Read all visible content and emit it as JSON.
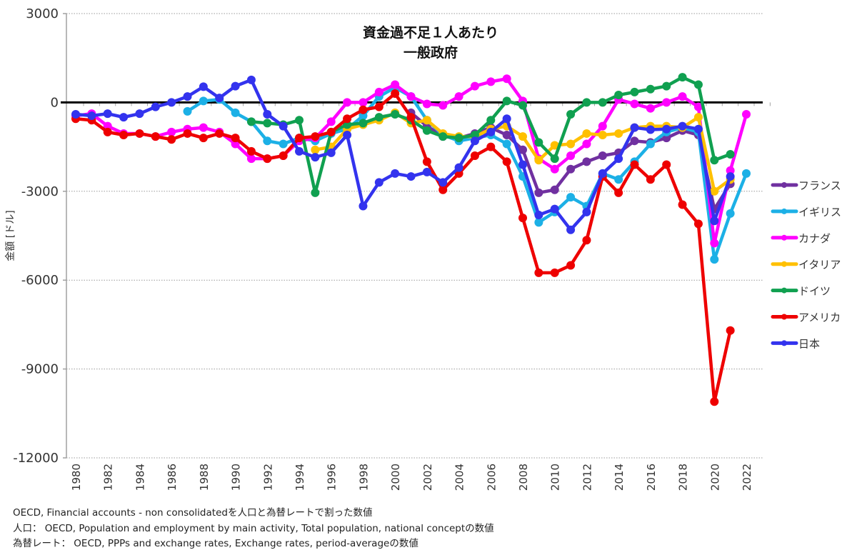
{
  "chart_data": {
    "type": "line",
    "title": "資金過不足１人あたり",
    "subtitle": "一般政府",
    "xlabel": "",
    "ylabel": "金額 [ドル]",
    "ylim": [
      -12000,
      3000
    ],
    "yticks": [
      3000,
      0,
      -3000,
      -6000,
      -9000,
      -12000
    ],
    "ytick_labels": [
      "3000",
      "0",
      "-3000",
      "-6000",
      "-9000",
      "-12000"
    ],
    "xlim": [
      1980,
      2022
    ],
    "xticks": [
      1980,
      1982,
      1984,
      1986,
      1988,
      1990,
      1992,
      1994,
      1996,
      1998,
      2000,
      2002,
      2004,
      2006,
      2008,
      2010,
      2012,
      2014,
      2016,
      2018,
      2020,
      2022
    ],
    "xtick_labels": [
      "1980",
      "1982",
      "1984",
      "1986",
      "1988",
      "1990",
      "1992",
      "1994",
      "1996",
      "1998",
      "2000",
      "2002",
      "2004",
      "2006",
      "2008",
      "2010",
      "2012",
      "2014",
      "2016",
      "2018",
      "2020",
      "2022"
    ],
    "grid": "horizontal-dotted",
    "zero_line": true,
    "legend_position": "right",
    "series": [
      {
        "name": "フランス",
        "color": "#7030a0",
        "start_year": 2001,
        "values": [
          -350,
          -800,
          -1150,
          -1200,
          -1050,
          -850,
          -1100,
          -1600,
          -3050,
          -2950,
          -2250,
          -2000,
          -1800,
          -1700,
          -1300,
          -1350,
          -1200,
          -950,
          -1100,
          -3600,
          -2750
        ]
      },
      {
        "name": "イギリス",
        "color": "#1cb0e6",
        "start_year": 1987,
        "values": [
          -300,
          50,
          100,
          -350,
          -650,
          -1300,
          -1400,
          -1200,
          -1300,
          -1050,
          -900,
          -450,
          200,
          500,
          200,
          -600,
          -1100,
          -1300,
          -1200,
          -1100,
          -1400,
          -2500,
          -4050,
          -3700,
          -3200,
          -3500,
          -2400,
          -2600,
          -2000,
          -1400,
          -1000,
          -850,
          -1000,
          -5300,
          -3750,
          -2400
        ]
      },
      {
        "name": "カナダ",
        "color": "#ff00ff",
        "start_year": 1980,
        "values": [
          -450,
          -380,
          -800,
          -1050,
          -1050,
          -1150,
          -1000,
          -900,
          -850,
          -1000,
          -1400,
          -1900,
          -1900,
          -1800,
          -1300,
          -1200,
          -650,
          0,
          0,
          350,
          600,
          200,
          -50,
          -100,
          200,
          550,
          700,
          800,
          50,
          -1900,
          -2250,
          -1800,
          -1400,
          -800,
          100,
          -50,
          -200,
          0,
          200,
          -150,
          -4750,
          -2300,
          -400
        ]
      },
      {
        "name": "イタリア",
        "color": "#ffc000",
        "start_year": 1995,
        "values": [
          -1600,
          -1500,
          -900,
          -750,
          -600,
          -350,
          -700,
          -600,
          -1050,
          -1150,
          -1150,
          -900,
          -800,
          -1150,
          -1950,
          -1450,
          -1400,
          -1050,
          -1100,
          -1050,
          -850,
          -800,
          -800,
          -850,
          -500,
          -3000,
          -2600
        ]
      },
      {
        "name": "ドイツ",
        "color": "#10a050",
        "start_year": 1991,
        "values": [
          -650,
          -700,
          -750,
          -600,
          -3050,
          -1000,
          -750,
          -700,
          -500,
          -400,
          -600,
          -950,
          -1150,
          -1200,
          -1100,
          -600,
          50,
          -100,
          -1350,
          -1900,
          -400,
          0,
          0,
          250,
          350,
          450,
          550,
          850,
          600,
          -1950,
          -1750
        ]
      },
      {
        "name": "アメリカ",
        "color": "#ee0000",
        "start_year": 1980,
        "values": [
          -550,
          -600,
          -1000,
          -1100,
          -1050,
          -1150,
          -1250,
          -1050,
          -1200,
          -1050,
          -1200,
          -1650,
          -1900,
          -1800,
          -1200,
          -1150,
          -1000,
          -550,
          -250,
          -150,
          300,
          -500,
          -2000,
          -2950,
          -2400,
          -1800,
          -1500,
          -2000,
          -3900,
          -5750,
          -5750,
          -5500,
          -4650,
          -2500,
          -3050,
          -2100,
          -2600,
          -2100,
          -3450,
          -4100,
          -10100,
          -7700
        ]
      },
      {
        "name": "日本",
        "color": "#3333ee",
        "start_year": 1980,
        "values": [
          -400,
          -450,
          -380,
          -500,
          -380,
          -150,
          0,
          200,
          530,
          150,
          550,
          760,
          -400,
          -800,
          -1650,
          -1850,
          -1700,
          -1100,
          -3500,
          -2700,
          -2400,
          -2500,
          -2350,
          -2700,
          -2200,
          -1300,
          -1000,
          -550,
          -2100,
          -3800,
          -3600,
          -4300,
          -3700,
          -2400,
          -1900,
          -850,
          -920,
          -900,
          -800,
          -900,
          -4000,
          -2500
        ]
      }
    ]
  },
  "notes": [
    "OECD, Financial accounts - non consolidatedを人口と為替レートで割った数値",
    "人口： OECD, Population and employment by main activity, Total population, national conceptの数値",
    "為替レート： OECD, PPPs and exchange rates, Exchange rates, period-averageの数値"
  ]
}
